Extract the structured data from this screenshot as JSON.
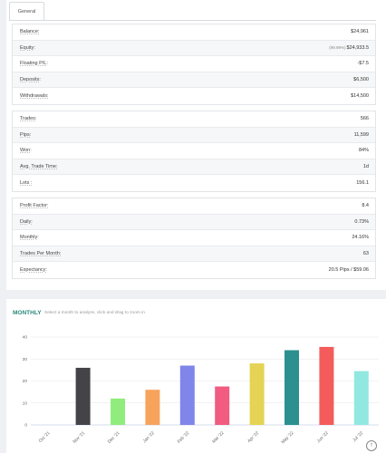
{
  "tabs": [
    {
      "label": "General"
    }
  ],
  "groups": [
    [
      {
        "label": "Balance:",
        "value": "$24,961"
      },
      {
        "label": "Equity:",
        "prefix": "(99.99%)",
        "value": "$24,933.5"
      },
      {
        "label": "Floating P/L:",
        "value": "-$7.5"
      },
      {
        "label": "Deposits:",
        "value": "$6,500"
      },
      {
        "label": "Withdrawals:",
        "value": "$14,500"
      }
    ],
    [
      {
        "label": "Trades:",
        "value": "566"
      },
      {
        "label": "Pips:",
        "value": "11,599"
      },
      {
        "label": "Won:",
        "value": "84%"
      },
      {
        "label": "Avg. Trade Time:",
        "value": "1d"
      },
      {
        "label": "Lots :",
        "value": "156.1"
      }
    ],
    [
      {
        "label": "Profit Factor:",
        "value": "8.4"
      },
      {
        "label": "Daily:",
        "value": "0.73%"
      },
      {
        "label": "Monthly:",
        "value": "24.16%"
      },
      {
        "label": "Trades Per Month:",
        "value": "63"
      },
      {
        "label": "Expectancy:",
        "value": "20.5 Pips / $59.06"
      }
    ]
  ],
  "monthly": {
    "title": "MONTHLY",
    "hint": "Select a month to analyze, click and drag to zoom in",
    "scroll_icon": "↑"
  },
  "chart_data": {
    "type": "bar",
    "categories": [
      "Oct '21",
      "Nov '21",
      "Dec '21",
      "Jan '22",
      "Feb '22",
      "Mar '22",
      "Apr '22",
      "May '22",
      "Jun '22",
      "Jul '22"
    ],
    "values": [
      0,
      26,
      12,
      16,
      27,
      17.5,
      28,
      34,
      35.5,
      24.5
    ],
    "colors": [
      "#434348",
      "#434348",
      "#90ed7d",
      "#f7a35c",
      "#8085e9",
      "#f15c80",
      "#e4d354",
      "#2b908f",
      "#f45b5b",
      "#91e8e1"
    ],
    "ylim": [
      0,
      40
    ],
    "yticks": [
      0,
      10,
      20,
      30,
      40
    ],
    "grid": true
  }
}
